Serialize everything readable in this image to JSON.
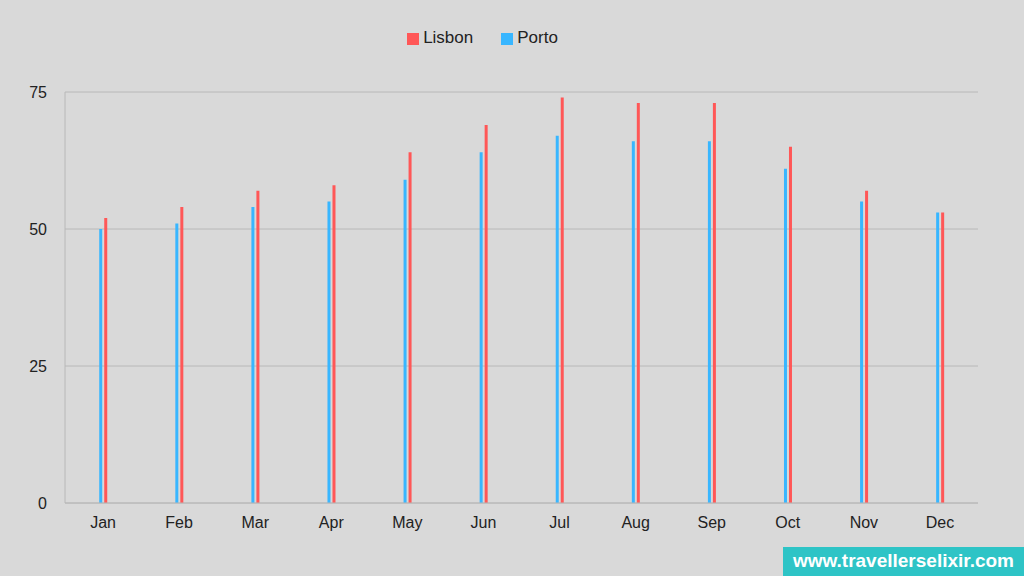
{
  "chart_data": {
    "type": "bar",
    "categories": [
      "Jan",
      "Feb",
      "Mar",
      "Apr",
      "May",
      "Jun",
      "Jul",
      "Aug",
      "Sep",
      "Oct",
      "Nov",
      "Dec"
    ],
    "series": [
      {
        "name": "Porto",
        "color": "#38b6ff",
        "values": [
          50,
          51,
          54,
          55,
          59,
          64,
          67,
          66,
          66,
          61,
          55,
          53
        ]
      },
      {
        "name": "Lisbon",
        "color": "#ff5757",
        "values": [
          52,
          54,
          57,
          58,
          64,
          69,
          74,
          73,
          73,
          65,
          57,
          53
        ]
      }
    ],
    "ylim": [
      0,
      75
    ],
    "yticks": [
      0,
      25,
      50,
      75
    ],
    "grid": true,
    "legend": "top",
    "watermark": "www.travellerselixir.com"
  }
}
